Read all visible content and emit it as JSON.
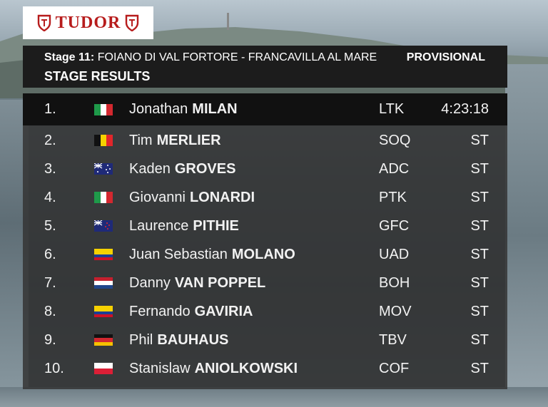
{
  "logo": {
    "text": "TUDOR"
  },
  "header": {
    "stage_prefix": "Stage 11:",
    "route": "FOIANO DI VAL FORTORE - FRANCAVILLA AL MARE",
    "status": "PROVISIONAL",
    "title": "STAGE RESULTS"
  },
  "results": [
    {
      "pos": "1.",
      "flag": "italy-flag",
      "first": "Jonathan",
      "last": "MILAN",
      "team": "LTK",
      "time": "4:23:18"
    },
    {
      "pos": "2.",
      "flag": "belgium-flag",
      "first": "Tim",
      "last": "MERLIER",
      "team": "SOQ",
      "time": "ST"
    },
    {
      "pos": "3.",
      "flag": "australia-flag",
      "first": "Kaden",
      "last": "GROVES",
      "team": "ADC",
      "time": "ST"
    },
    {
      "pos": "4.",
      "flag": "italy-flag",
      "first": "Giovanni",
      "last": "LONARDI",
      "team": "PTK",
      "time": "ST"
    },
    {
      "pos": "5.",
      "flag": "new-zealand-flag",
      "first": "Laurence",
      "last": "PITHIE",
      "team": "GFC",
      "time": "ST"
    },
    {
      "pos": "6.",
      "flag": "colombia-flag",
      "first": "Juan Sebastian",
      "last": "MOLANO",
      "team": "UAD",
      "time": "ST"
    },
    {
      "pos": "7.",
      "flag": "netherlands-flag",
      "first": "Danny",
      "last": "VAN POPPEL",
      "team": "BOH",
      "time": "ST"
    },
    {
      "pos": "8.",
      "flag": "colombia-flag",
      "first": "Fernando",
      "last": "GAVIRIA",
      "team": "MOV",
      "time": "ST"
    },
    {
      "pos": "9.",
      "flag": "germany-flag",
      "first": "Phil",
      "last": "BAUHAUS",
      "team": "TBV",
      "time": "ST"
    },
    {
      "pos": "10.",
      "flag": "poland-flag",
      "first": "Stanislaw",
      "last": "ANIOLKOWSKI",
      "team": "COF",
      "time": "ST"
    }
  ],
  "colors": {
    "brand_red": "#b71c1c",
    "header_bg": "#1c1c1c",
    "table_bg": "#343434",
    "first_row_bg": "#111111"
  }
}
